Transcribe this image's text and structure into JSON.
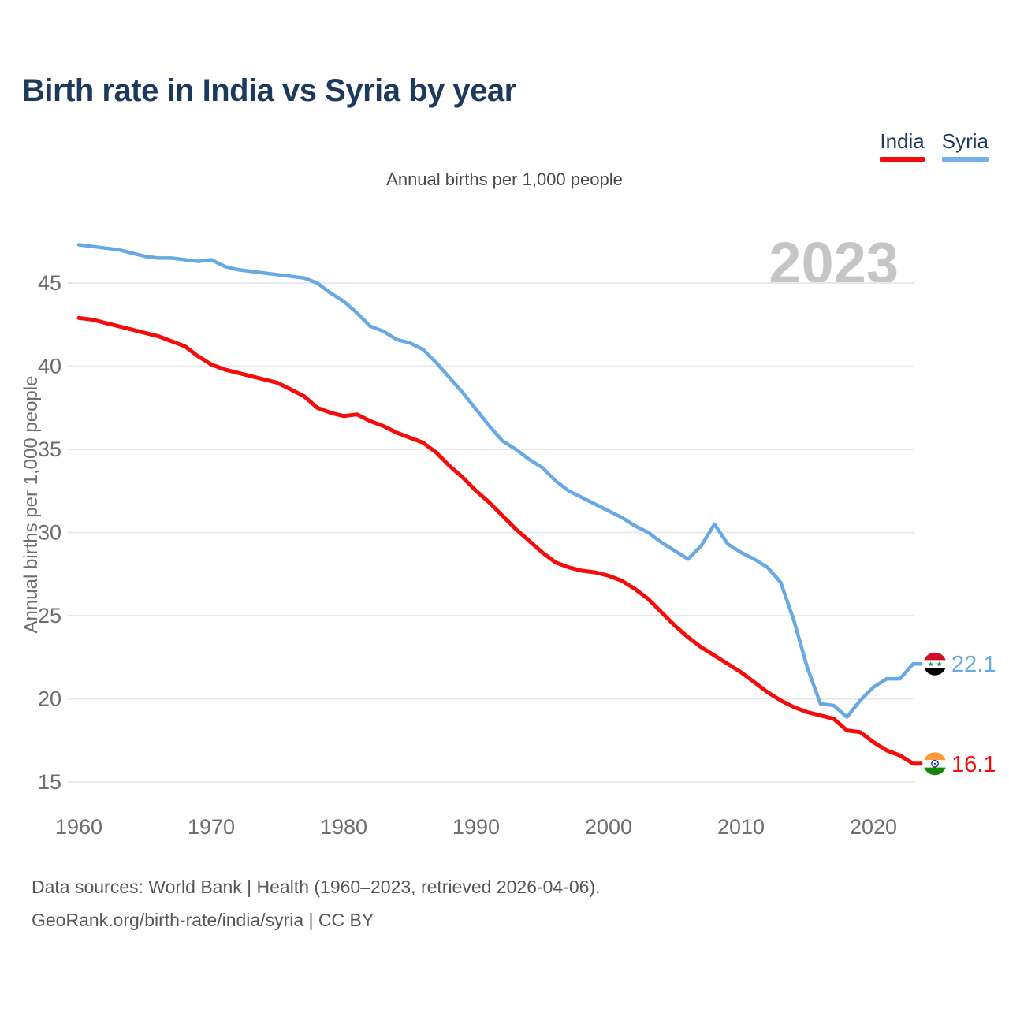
{
  "page": {
    "title": "Birth rate in India vs Syria by year",
    "subtitle": "Annual births per 1,000 people",
    "watermark": "2023"
  },
  "legend": {
    "items": [
      {
        "label": "India",
        "color": "#f40c0c"
      },
      {
        "label": "Syria",
        "color": "#74b1e8"
      }
    ]
  },
  "chart_data": {
    "type": "line",
    "title": "Birth rate in India vs Syria by year",
    "subtitle": "Annual births per 1,000 people",
    "xlabel": "",
    "ylabel": "Annual births per 1,000 people",
    "grid": "horizontal-only",
    "legend_position": "top-right",
    "xlim": [
      1960,
      2023
    ],
    "ylim": [
      14.5,
      48.5
    ],
    "x_ticks": [
      1960,
      1970,
      1980,
      1990,
      2000,
      2010,
      2020
    ],
    "y_ticks": [
      15,
      20,
      25,
      30,
      35,
      40,
      45
    ],
    "x": [
      1960,
      1961,
      1962,
      1963,
      1964,
      1965,
      1966,
      1967,
      1968,
      1969,
      1970,
      1971,
      1972,
      1973,
      1974,
      1975,
      1976,
      1977,
      1978,
      1979,
      1980,
      1981,
      1982,
      1983,
      1984,
      1985,
      1986,
      1987,
      1988,
      1989,
      1990,
      1991,
      1992,
      1993,
      1994,
      1995,
      1996,
      1997,
      1998,
      1999,
      2000,
      2001,
      2002,
      2003,
      2004,
      2005,
      2006,
      2007,
      2008,
      2009,
      2010,
      2011,
      2012,
      2013,
      2014,
      2015,
      2016,
      2017,
      2018,
      2019,
      2020,
      2021,
      2022,
      2023
    ],
    "series": [
      {
        "name": "India",
        "color": "#f40c0c",
        "flag": "india",
        "values": [
          42.9,
          42.8,
          42.6,
          42.4,
          42.2,
          42.0,
          41.8,
          41.5,
          41.2,
          40.6,
          40.1,
          39.8,
          39.6,
          39.4,
          39.2,
          39.0,
          38.6,
          38.2,
          37.5,
          37.2,
          37.0,
          37.1,
          36.7,
          36.4,
          36.0,
          35.7,
          35.4,
          34.8,
          34.0,
          33.3,
          32.5,
          31.8,
          31.0,
          30.2,
          29.5,
          28.8,
          28.2,
          27.9,
          27.7,
          27.6,
          27.4,
          27.1,
          26.6,
          26.0,
          25.2,
          24.4,
          23.7,
          23.1,
          22.6,
          22.1,
          21.6,
          21.0,
          20.4,
          19.9,
          19.5,
          19.2,
          19.0,
          18.8,
          18.1,
          18.0,
          17.4,
          16.9,
          16.6,
          16.1
        ]
      },
      {
        "name": "Syria",
        "color": "#68a9e3",
        "flag": "syria",
        "values": [
          47.3,
          47.2,
          47.1,
          47.0,
          46.8,
          46.6,
          46.5,
          46.5,
          46.4,
          46.3,
          46.4,
          46.0,
          45.8,
          45.7,
          45.6,
          45.5,
          45.4,
          45.3,
          45.0,
          44.4,
          43.9,
          43.2,
          42.4,
          42.1,
          41.6,
          41.4,
          41.0,
          40.2,
          39.3,
          38.4,
          37.4,
          36.4,
          35.5,
          35.0,
          34.4,
          33.9,
          33.1,
          32.5,
          32.1,
          31.7,
          31.3,
          30.9,
          30.4,
          30.0,
          29.4,
          28.9,
          28.4,
          29.2,
          30.5,
          29.3,
          28.8,
          28.4,
          27.9,
          27.0,
          24.7,
          21.9,
          19.7,
          19.6,
          18.9,
          19.9,
          20.7,
          21.2,
          21.2,
          22.1
        ]
      }
    ],
    "end_labels": [
      {
        "series": "Syria",
        "value": "22.1"
      },
      {
        "series": "India",
        "value": "16.1"
      }
    ]
  },
  "footer": {
    "line1": "Data sources: World Bank | Health (1960–2023, retrieved 2026-04-06).",
    "line2": "GeoRank.org/birth-rate/india/syria | CC BY"
  },
  "style": {
    "grid_color": "#e9e9e9",
    "tick_color": "#6e6e6e",
    "watermark_color": "#c5c5c5",
    "title_color": "#1d3a5c"
  }
}
